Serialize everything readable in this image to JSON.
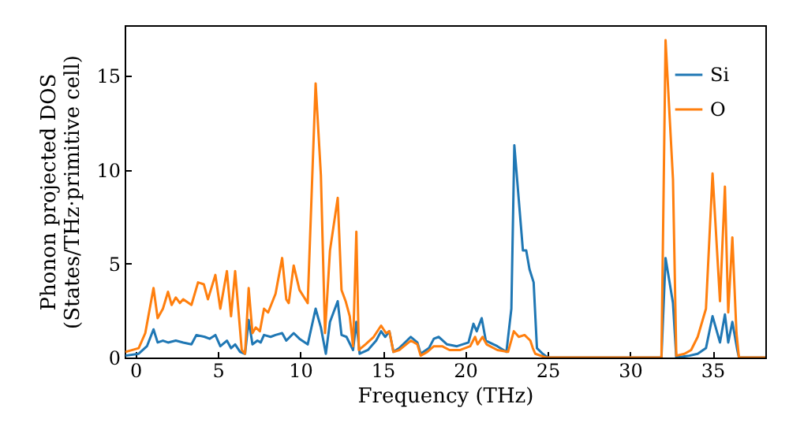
{
  "chart_data": {
    "type": "line",
    "xlabel": "Frequency (THz)",
    "ylabel": "Phonon projected DOS\n(States/THz·primitive cell)",
    "xlim": [
      -0.65,
      38.2
    ],
    "ylim": [
      0,
      17.7
    ],
    "xticks": [
      0,
      5,
      10,
      15,
      20,
      25,
      30,
      35
    ],
    "yticks": [
      0,
      5,
      10,
      15
    ],
    "grid": false,
    "legend": "top right",
    "series": [
      {
        "name": "Si",
        "color": "#1f77b4",
        "x": [
          -0.6,
          0.2,
          0.7,
          1.1,
          1.35,
          1.67,
          1.98,
          2.45,
          2.9,
          3.4,
          3.7,
          4.2,
          4.5,
          4.85,
          5.15,
          5.55,
          5.8,
          6.05,
          6.35,
          6.65,
          6.87,
          7.1,
          7.4,
          7.6,
          7.8,
          8.2,
          8.5,
          8.9,
          9.15,
          9.6,
          9.95,
          10.45,
          10.93,
          11.25,
          11.55,
          11.8,
          12.27,
          12.5,
          12.8,
          13.2,
          13.4,
          13.6,
          14.1,
          14.6,
          14.9,
          15.15,
          15.4,
          15.65,
          16.0,
          16.7,
          17.1,
          17.3,
          17.8,
          18.1,
          18.4,
          18.9,
          19.5,
          20.2,
          20.5,
          20.7,
          21.0,
          21.25,
          21.95,
          22.5,
          22.8,
          22.98,
          23.5,
          23.7,
          23.9,
          24.15,
          24.35,
          24.7,
          25.0,
          31.9,
          32.15,
          32.6,
          32.8,
          33.6,
          34.1,
          34.6,
          35.0,
          35.45,
          35.75,
          35.95,
          36.2,
          36.5,
          36.6,
          38.2
        ],
        "values": [
          0.1,
          0.2,
          0.6,
          1.5,
          0.8,
          0.9,
          0.8,
          0.9,
          0.8,
          0.7,
          1.2,
          1.1,
          1.0,
          1.2,
          0.6,
          0.9,
          0.5,
          0.7,
          0.3,
          0.2,
          2.0,
          0.7,
          0.9,
          0.8,
          1.2,
          1.1,
          1.2,
          1.3,
          0.9,
          1.3,
          1.0,
          0.7,
          2.6,
          1.6,
          0.2,
          1.9,
          3.0,
          1.2,
          1.1,
          0.4,
          1.9,
          0.2,
          0.4,
          0.9,
          1.4,
          1.1,
          1.4,
          0.3,
          0.5,
          1.1,
          0.8,
          0.2,
          0.5,
          1.0,
          1.1,
          0.7,
          0.6,
          0.8,
          1.8,
          1.4,
          2.1,
          0.9,
          0.6,
          0.3,
          2.6,
          11.3,
          5.7,
          5.7,
          4.7,
          4.0,
          0.5,
          0.2,
          0,
          0,
          5.3,
          2.9,
          0,
          0.1,
          0.2,
          0.5,
          2.2,
          0.8,
          2.3,
          0.8,
          1.9,
          0.4,
          0,
          0
        ]
      },
      {
        "name": "O",
        "color": "#ff7f0e",
        "x": [
          -0.6,
          0.2,
          0.6,
          1.1,
          1.35,
          1.67,
          1.98,
          2.2,
          2.45,
          2.7,
          2.9,
          3.4,
          3.8,
          4.15,
          4.4,
          4.85,
          5.15,
          5.55,
          5.8,
          6.05,
          6.45,
          6.65,
          6.87,
          7.1,
          7.3,
          7.55,
          7.8,
          8.05,
          8.5,
          8.9,
          9.15,
          9.3,
          9.6,
          9.95,
          10.45,
          10.93,
          11.25,
          11.5,
          11.8,
          12.27,
          12.5,
          12.75,
          13.0,
          13.2,
          13.4,
          13.55,
          13.95,
          14.45,
          14.9,
          15.2,
          15.4,
          15.65,
          16.0,
          16.7,
          17.1,
          17.3,
          17.7,
          18.1,
          18.6,
          19.05,
          19.7,
          20.3,
          20.6,
          20.75,
          21.05,
          21.3,
          21.95,
          22.6,
          22.95,
          23.25,
          23.6,
          23.95,
          24.1,
          24.25,
          24.9,
          31.9,
          32.15,
          32.6,
          32.8,
          33.3,
          33.7,
          34.1,
          34.6,
          35.0,
          35.45,
          35.75,
          35.95,
          36.2,
          36.45,
          36.6,
          38.2
        ],
        "values": [
          0.3,
          0.5,
          1.3,
          3.7,
          2.1,
          2.6,
          3.5,
          2.8,
          3.2,
          2.9,
          3.1,
          2.8,
          4.0,
          3.9,
          3.1,
          4.4,
          2.6,
          4.6,
          2.2,
          4.6,
          0.4,
          0.2,
          3.7,
          1.3,
          1.6,
          1.4,
          2.6,
          2.4,
          3.4,
          5.3,
          3.1,
          2.9,
          4.9,
          3.6,
          2.9,
          14.6,
          9.7,
          1.3,
          5.7,
          8.5,
          3.6,
          3.0,
          2.2,
          0.6,
          6.7,
          0.4,
          0.7,
          1.1,
          1.7,
          1.3,
          1.4,
          0.3,
          0.4,
          0.9,
          0.7,
          0.1,
          0.3,
          0.6,
          0.6,
          0.4,
          0.4,
          0.6,
          1.1,
          0.7,
          1.1,
          0.7,
          0.4,
          0.3,
          1.4,
          1.1,
          1.2,
          0.9,
          0.5,
          0.2,
          0,
          0,
          16.9,
          9.5,
          0.1,
          0.2,
          0.4,
          1.1,
          2.6,
          9.8,
          3.0,
          9.1,
          2.4,
          6.4,
          1.3,
          0,
          0
        ]
      }
    ]
  }
}
